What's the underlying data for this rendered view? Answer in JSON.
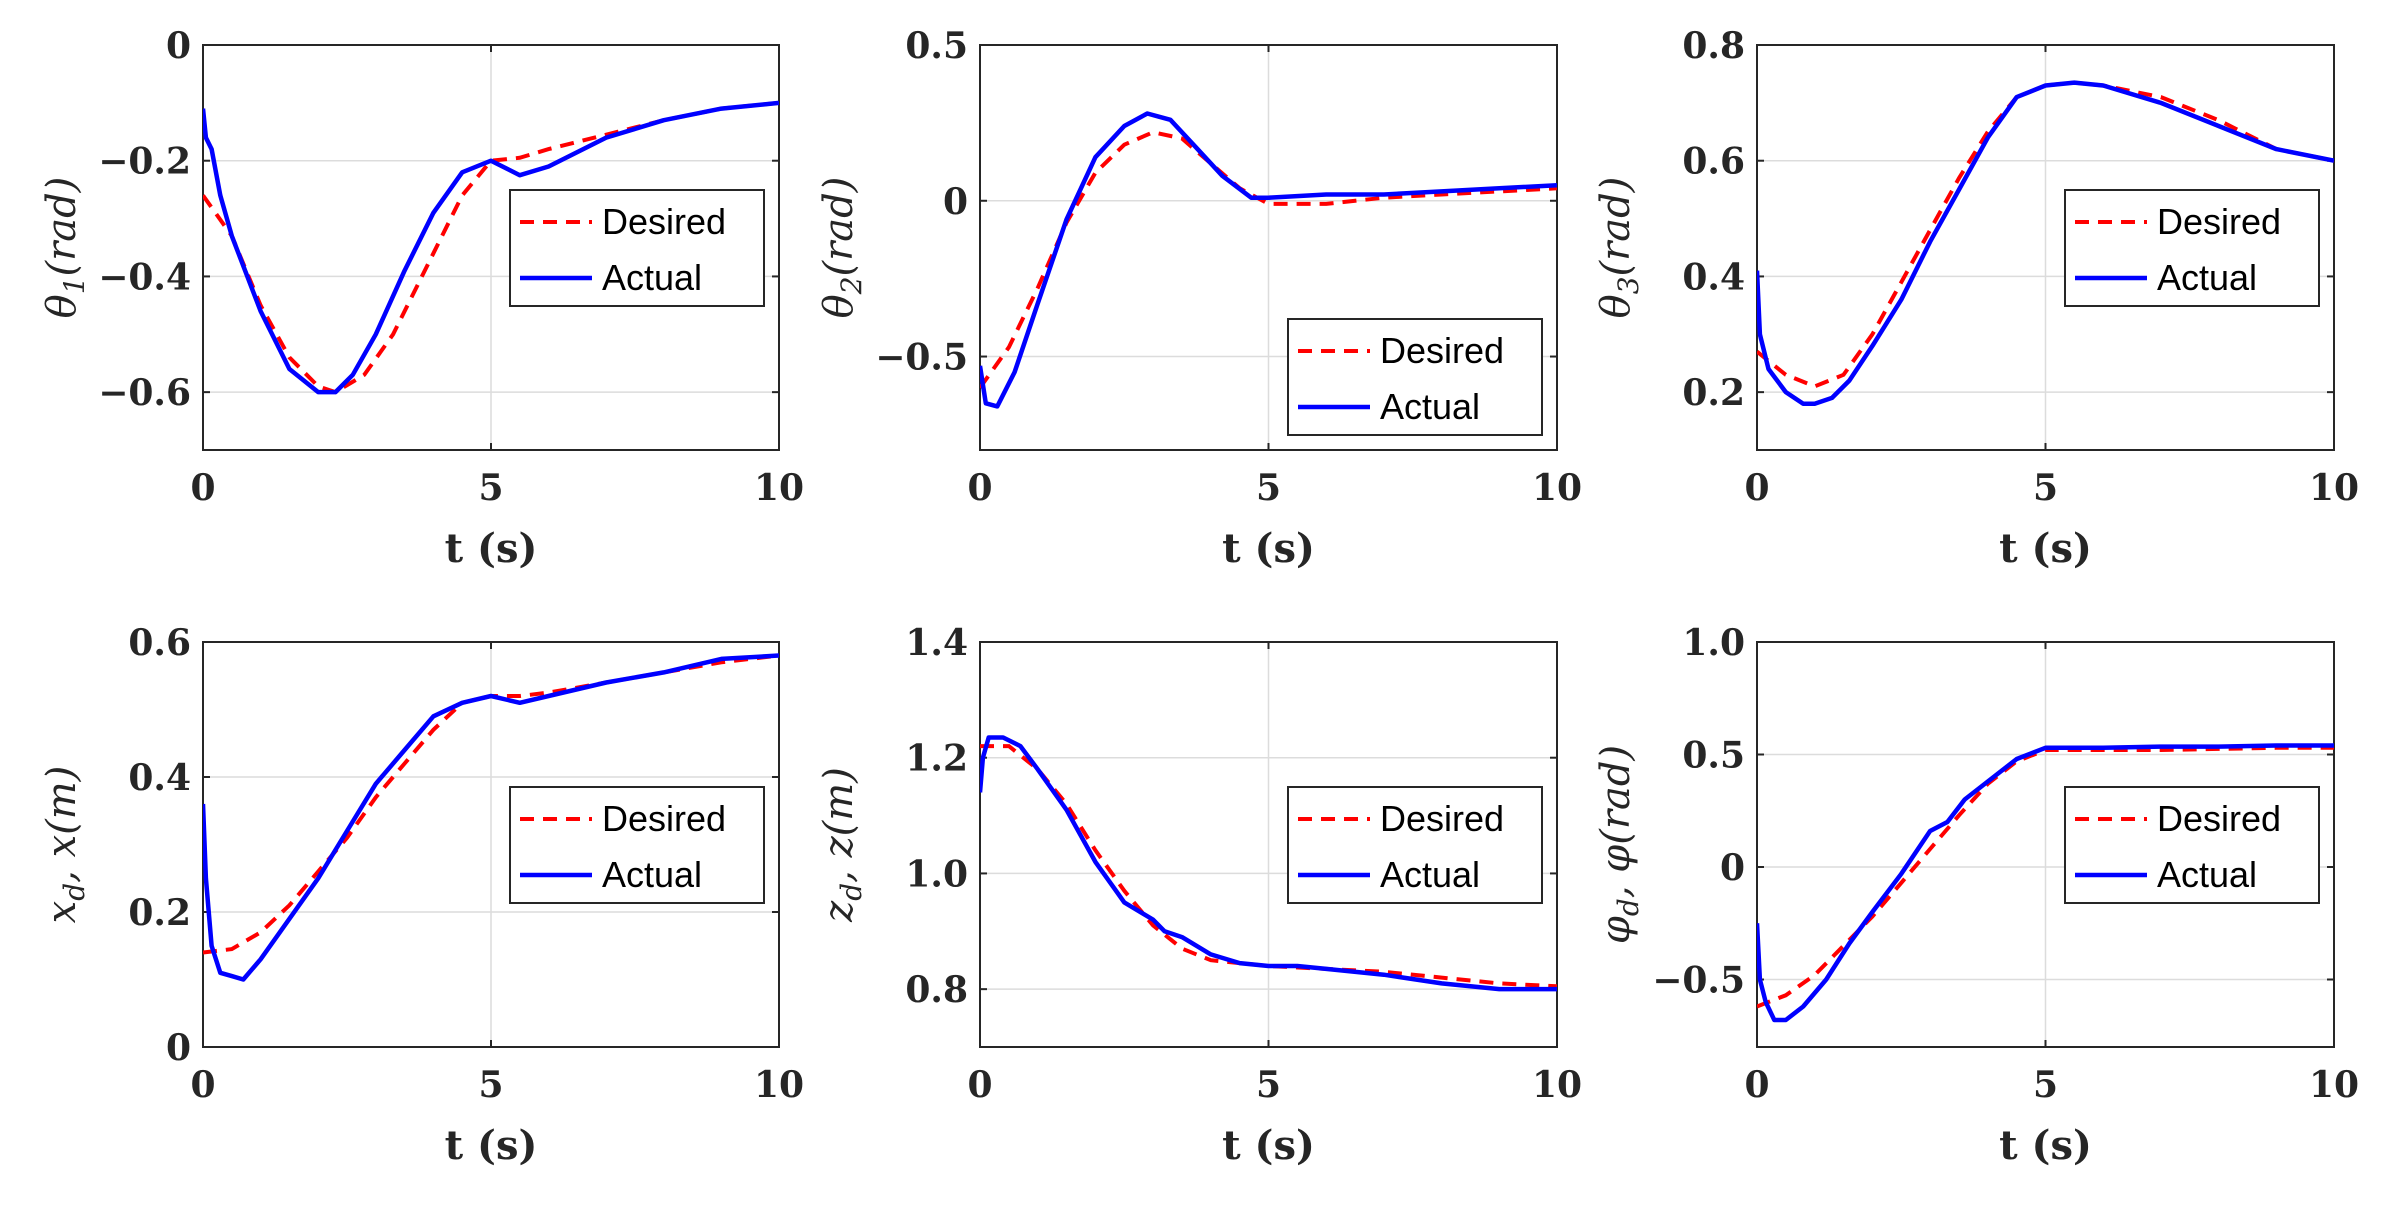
{
  "legend": {
    "desired": "Desired",
    "actual": "Actual"
  },
  "colors": {
    "desired": "#ff0000",
    "actual": "#0000ff",
    "axes": "#262626",
    "grid": "#dcdcdc"
  },
  "chart_data": [
    {
      "type": "line",
      "ylabel": "θ1(rad)",
      "ylabel_base": "θ",
      "ylabel_sub": "1",
      "ylabel_tail": "(rad)",
      "xlabel": "t (s)",
      "xlim": [
        0,
        10
      ],
      "ylim": [
        -0.7,
        0
      ],
      "xticks": [
        0,
        5,
        10
      ],
      "yticks": [
        0,
        -0.2,
        -0.4,
        -0.6
      ],
      "yticklabels": [
        "0",
        "-0.2",
        "-0.4",
        "-0.6"
      ],
      "legend_position": "right",
      "series": [
        {
          "name": "Desired",
          "x": [
            0,
            0.5,
            1,
            1.5,
            2,
            2.3,
            2.8,
            3.3,
            4,
            4.5,
            5,
            5.5,
            6,
            7,
            8,
            9,
            10
          ],
          "y": [
            -0.26,
            -0.33,
            -0.45,
            -0.54,
            -0.59,
            -0.6,
            -0.57,
            -0.5,
            -0.36,
            -0.26,
            -0.2,
            -0.195,
            -0.18,
            -0.155,
            -0.13,
            -0.11,
            -0.1
          ]
        },
        {
          "name": "Actual",
          "x": [
            0,
            0.05,
            0.15,
            0.3,
            0.5,
            1,
            1.5,
            2,
            2.3,
            2.6,
            3,
            3.5,
            4,
            4.5,
            5,
            5.2,
            5.5,
            6,
            7,
            8,
            9,
            10
          ],
          "y": [
            -0.11,
            -0.16,
            -0.18,
            -0.26,
            -0.33,
            -0.46,
            -0.56,
            -0.6,
            -0.6,
            -0.57,
            -0.5,
            -0.39,
            -0.29,
            -0.22,
            -0.2,
            -0.21,
            -0.225,
            -0.21,
            -0.16,
            -0.13,
            -0.11,
            -0.1
          ]
        }
      ]
    },
    {
      "type": "line",
      "ylabel": "θ2(rad)",
      "ylabel_base": "θ",
      "ylabel_sub": "2",
      "ylabel_tail": "(rad)",
      "xlabel": "t (s)",
      "xlim": [
        0,
        10
      ],
      "ylim": [
        -0.8,
        0.5
      ],
      "xticks": [
        0,
        5,
        10
      ],
      "yticks": [
        0.5,
        0,
        -0.5
      ],
      "yticklabels": [
        "0.5",
        "0",
        "-0.5"
      ],
      "legend_position": "lower-right",
      "series": [
        {
          "name": "Desired",
          "x": [
            0,
            0.5,
            1,
            1.5,
            2,
            2.5,
            3,
            3.5,
            4,
            4.5,
            5,
            6,
            7,
            8,
            9,
            10
          ],
          "y": [
            -0.6,
            -0.47,
            -0.28,
            -0.07,
            0.09,
            0.18,
            0.22,
            0.2,
            0.12,
            0.04,
            -0.01,
            -0.01,
            0.01,
            0.02,
            0.03,
            0.04
          ]
        },
        {
          "name": "Actual",
          "x": [
            0,
            0.1,
            0.3,
            0.6,
            1,
            1.5,
            2,
            2.5,
            2.9,
            3.1,
            3.3,
            3.7,
            4.2,
            4.7,
            5,
            6,
            7,
            8,
            9,
            10
          ],
          "y": [
            -0.53,
            -0.65,
            -0.66,
            -0.55,
            -0.33,
            -0.06,
            0.14,
            0.24,
            0.28,
            0.27,
            0.26,
            0.18,
            0.08,
            0.01,
            0.01,
            0.02,
            0.02,
            0.03,
            0.04,
            0.05
          ]
        }
      ]
    },
    {
      "type": "line",
      "ylabel": "θ3(rad)",
      "ylabel_base": "θ",
      "ylabel_sub": "3",
      "ylabel_tail": "(rad)",
      "xlabel": "t (s)",
      "xlim": [
        0,
        10
      ],
      "ylim": [
        0.1,
        0.8
      ],
      "xticks": [
        0,
        5,
        10
      ],
      "yticks": [
        0.8,
        0.6,
        0.4,
        0.2
      ],
      "yticklabels": [
        "0.8",
        "0.6",
        "0.4",
        "0.2"
      ],
      "legend_position": "right",
      "series": [
        {
          "name": "Desired",
          "x": [
            0,
            0.5,
            1,
            1.5,
            2,
            2.5,
            3,
            3.5,
            4,
            4.5,
            5,
            5.5,
            6,
            7,
            8,
            9,
            10
          ],
          "y": [
            0.27,
            0.23,
            0.21,
            0.23,
            0.3,
            0.39,
            0.48,
            0.57,
            0.65,
            0.71,
            0.73,
            0.735,
            0.73,
            0.71,
            0.67,
            0.62,
            0.6
          ]
        },
        {
          "name": "Actual",
          "x": [
            0,
            0.05,
            0.2,
            0.5,
            0.8,
            1,
            1.3,
            1.6,
            2,
            2.5,
            3,
            3.5,
            4,
            4.5,
            5,
            5.5,
            6,
            7,
            8,
            9,
            10
          ],
          "y": [
            0.41,
            0.3,
            0.24,
            0.2,
            0.18,
            0.18,
            0.19,
            0.22,
            0.28,
            0.36,
            0.46,
            0.55,
            0.64,
            0.71,
            0.73,
            0.735,
            0.73,
            0.7,
            0.66,
            0.62,
            0.6
          ]
        }
      ]
    },
    {
      "type": "line",
      "ylabel": "xd, x(m)",
      "ylabel_parts": [
        "x",
        "d",
        ", x(m)"
      ],
      "xlabel": "t (s)",
      "xlim": [
        0,
        10
      ],
      "ylim": [
        0,
        0.6
      ],
      "xticks": [
        0,
        5,
        10
      ],
      "yticks": [
        0.6,
        0.4,
        0.2,
        0
      ],
      "yticklabels": [
        "0.6",
        "0.4",
        "0.2",
        "0"
      ],
      "legend_position": "right",
      "series": [
        {
          "name": "Desired",
          "x": [
            0,
            0.5,
            1,
            1.5,
            2,
            2.5,
            3,
            3.5,
            4,
            4.5,
            5,
            5.5,
            6,
            7,
            8,
            9,
            10
          ],
          "y": [
            0.14,
            0.145,
            0.17,
            0.21,
            0.26,
            0.31,
            0.37,
            0.42,
            0.47,
            0.51,
            0.52,
            0.52,
            0.525,
            0.54,
            0.555,
            0.57,
            0.58
          ]
        },
        {
          "name": "Actual",
          "x": [
            0,
            0.05,
            0.15,
            0.3,
            0.5,
            0.7,
            1,
            1.5,
            2,
            2.5,
            3,
            3.5,
            4,
            4.5,
            5,
            5.5,
            6,
            7,
            8,
            9,
            10
          ],
          "y": [
            0.36,
            0.25,
            0.15,
            0.11,
            0.105,
            0.1,
            0.13,
            0.19,
            0.25,
            0.32,
            0.39,
            0.44,
            0.49,
            0.51,
            0.52,
            0.51,
            0.52,
            0.54,
            0.555,
            0.575,
            0.58
          ]
        }
      ]
    },
    {
      "type": "line",
      "ylabel": "zd, z(m)",
      "ylabel_parts": [
        "z",
        "d",
        ", z(m)"
      ],
      "xlabel": "t (s)",
      "xlim": [
        0,
        10
      ],
      "ylim": [
        0.7,
        1.4
      ],
      "xticks": [
        0,
        5,
        10
      ],
      "yticks": [
        1.4,
        1.2,
        1.0,
        0.8
      ],
      "yticklabels": [
        "1.4",
        "1.2",
        "1.0",
        "0.8"
      ],
      "legend_position": "right",
      "series": [
        {
          "name": "Desired",
          "x": [
            0,
            0.5,
            1,
            1.5,
            2,
            2.5,
            3,
            3.5,
            4,
            4.5,
            5,
            6,
            7,
            8,
            9,
            10
          ],
          "y": [
            1.22,
            1.22,
            1.18,
            1.12,
            1.04,
            0.97,
            0.91,
            0.87,
            0.85,
            0.845,
            0.84,
            0.835,
            0.83,
            0.82,
            0.81,
            0.805
          ]
        },
        {
          "name": "Actual",
          "x": [
            0,
            0.05,
            0.15,
            0.4,
            0.7,
            1,
            1.5,
            2,
            2.5,
            3,
            3.2,
            3.5,
            4,
            4.5,
            5,
            5.5,
            6,
            7,
            8,
            9,
            10
          ],
          "y": [
            1.14,
            1.2,
            1.235,
            1.235,
            1.22,
            1.18,
            1.11,
            1.02,
            0.95,
            0.92,
            0.9,
            0.89,
            0.86,
            0.845,
            0.84,
            0.84,
            0.835,
            0.825,
            0.81,
            0.8,
            0.8
          ]
        }
      ]
    },
    {
      "type": "line",
      "ylabel": "φd, φ(rad)",
      "ylabel_parts": [
        "φ",
        "d",
        ", φ(rad)"
      ],
      "xlabel": "t (s)",
      "xlim": [
        0,
        10
      ],
      "ylim": [
        -0.8,
        1.0
      ],
      "xticks": [
        0,
        5,
        10
      ],
      "yticks": [
        1.0,
        0.5,
        0,
        -0.5
      ],
      "yticklabels": [
        "1.0",
        "0.5",
        "0",
        "-0.5"
      ],
      "legend_position": "right",
      "series": [
        {
          "name": "Desired",
          "x": [
            0,
            0.5,
            1,
            1.5,
            2,
            2.5,
            3,
            3.5,
            4,
            4.5,
            5,
            6,
            7,
            8,
            9,
            10
          ],
          "y": [
            -0.62,
            -0.57,
            -0.48,
            -0.35,
            -0.22,
            -0.07,
            0.08,
            0.23,
            0.37,
            0.47,
            0.52,
            0.52,
            0.52,
            0.525,
            0.53,
            0.53
          ]
        },
        {
          "name": "Actual",
          "x": [
            0,
            0.05,
            0.15,
            0.3,
            0.5,
            0.8,
            1.2,
            1.6,
            2,
            2.5,
            3,
            3.3,
            3.6,
            4,
            4.5,
            5,
            6,
            7,
            8,
            9,
            10
          ],
          "y": [
            -0.25,
            -0.5,
            -0.6,
            -0.68,
            -0.68,
            -0.62,
            -0.5,
            -0.34,
            -0.2,
            -0.03,
            0.16,
            0.2,
            0.3,
            0.38,
            0.48,
            0.53,
            0.53,
            0.535,
            0.535,
            0.54,
            0.54
          ]
        }
      ]
    }
  ]
}
